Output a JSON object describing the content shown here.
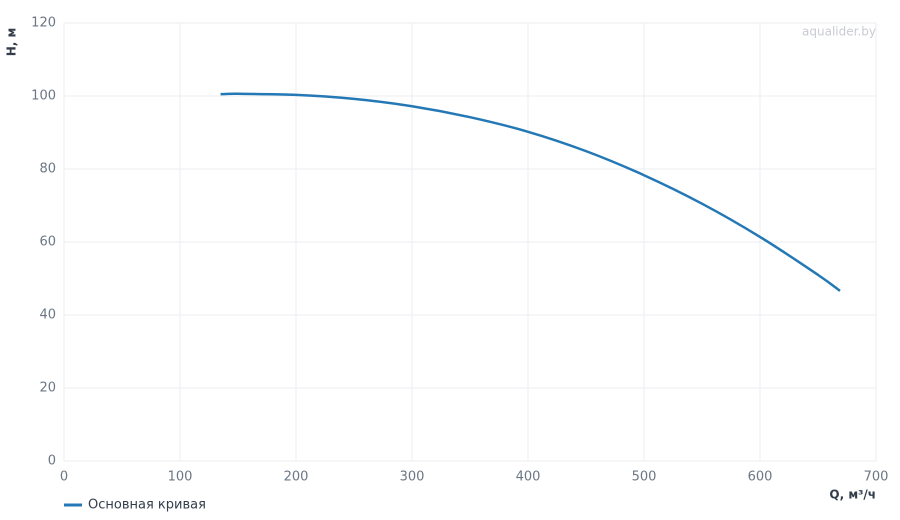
{
  "chart_data": {
    "type": "line",
    "watermark": "aqualider.by",
    "x_label": "Q, м³/ч",
    "y_label": "H, м",
    "x": [
      135,
      150,
      200,
      250,
      300,
      350,
      400,
      450,
      500,
      550,
      600,
      650,
      669
    ],
    "series": [
      {
        "name": "Основная кривая",
        "color": "#2478b5",
        "values": [
          100.5,
          100.6,
          100.3,
          99.2,
          97.2,
          94.2,
          90.2,
          84.9,
          78.3,
          70.5,
          61.4,
          51.0,
          46.6
        ]
      }
    ],
    "xlim": [
      0,
      700
    ],
    "xticks": [
      0,
      100,
      200,
      300,
      400,
      500,
      600,
      700
    ],
    "ylim": [
      0,
      120
    ],
    "yticks": [
      0,
      20,
      40,
      60,
      80,
      100,
      120
    ],
    "grid": true
  }
}
